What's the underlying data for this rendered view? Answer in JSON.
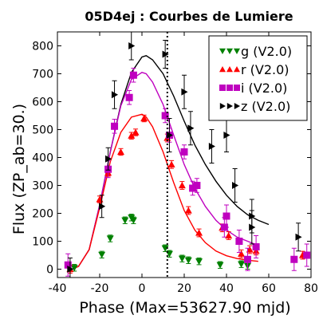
{
  "chart_data": {
    "type": "scatter",
    "title": "05D4ej : Courbes de Lumiere",
    "xlabel": "Phase (Max=53627.90 mjd)",
    "ylabel": "Flux (ZP_ab=30.)",
    "xlim": [
      -40,
      80
    ],
    "ylim": [
      -30,
      850
    ],
    "xticks": [
      -40,
      -20,
      0,
      20,
      40,
      60,
      80
    ],
    "yticks": [
      0,
      100,
      200,
      300,
      400,
      500,
      600,
      700,
      800
    ],
    "vline_x": 12,
    "legend_position": "top-right",
    "series": [
      {
        "name": "g (V2.0)",
        "color": "#008000",
        "marker": "triangle-down",
        "points": [
          {
            "x": -19,
            "y": 52,
            "err": 12
          },
          {
            "x": -15,
            "y": 110,
            "err": 12
          },
          {
            "x": -8,
            "y": 175,
            "err": 12
          },
          {
            "x": -5,
            "y": 185,
            "err": 12
          },
          {
            "x": -4,
            "y": 175,
            "err": 12
          },
          {
            "x": 11,
            "y": 75,
            "err": 12
          },
          {
            "x": 13,
            "y": 55,
            "err": 12
          },
          {
            "x": 19,
            "y": 38,
            "err": 12
          },
          {
            "x": 22,
            "y": 32,
            "err": 12
          },
          {
            "x": 27,
            "y": 28,
            "err": 12
          },
          {
            "x": 37,
            "y": 15,
            "err": 12
          },
          {
            "x": 47,
            "y": 18,
            "err": 12
          },
          {
            "x": 50,
            "y": 12,
            "err": 12
          },
          {
            "x": -32,
            "y": 5,
            "err": 12
          }
        ]
      },
      {
        "name": "r (V2.0)",
        "color": "#ff0000",
        "marker": "triangle-up",
        "points": [
          {
            "x": -20,
            "y": 250,
            "err": 12
          },
          {
            "x": -16,
            "y": 345,
            "err": 12
          },
          {
            "x": -10,
            "y": 420,
            "err": 12
          },
          {
            "x": -5,
            "y": 478,
            "err": 12
          },
          {
            "x": -3,
            "y": 490,
            "err": 12
          },
          {
            "x": 1,
            "y": 540,
            "err": 12
          },
          {
            "x": 12,
            "y": 470,
            "err": 14
          },
          {
            "x": 14,
            "y": 375,
            "err": 14
          },
          {
            "x": 19,
            "y": 300,
            "err": 14
          },
          {
            "x": 22,
            "y": 210,
            "err": 14
          },
          {
            "x": 27,
            "y": 130,
            "err": 14
          },
          {
            "x": 38,
            "y": 148,
            "err": 14
          },
          {
            "x": 41,
            "y": 120,
            "err": 14
          },
          {
            "x": 47,
            "y": 55,
            "err": 14
          },
          {
            "x": 51,
            "y": 70,
            "err": 14
          },
          {
            "x": 54,
            "y": 65,
            "err": 14
          },
          {
            "x": 76,
            "y": 50,
            "err": 14
          },
          {
            "x": -34,
            "y": 0,
            "err": 14
          }
        ]
      },
      {
        "name": "i (V2.0)",
        "color": "#bf00bf",
        "marker": "square",
        "points": [
          {
            "x": -35,
            "y": 15,
            "err": 40
          },
          {
            "x": -16,
            "y": 358,
            "err": 30
          },
          {
            "x": -13,
            "y": 512,
            "err": 25
          },
          {
            "x": -6,
            "y": 615,
            "err": 25
          },
          {
            "x": -4,
            "y": 695,
            "err": 25
          },
          {
            "x": 11,
            "y": 550,
            "err": 25
          },
          {
            "x": 13,
            "y": 480,
            "err": 25
          },
          {
            "x": 20,
            "y": 420,
            "err": 25
          },
          {
            "x": 24,
            "y": 290,
            "err": 25
          },
          {
            "x": 26,
            "y": 300,
            "err": 25
          },
          {
            "x": 39,
            "y": 150,
            "err": 35
          },
          {
            "x": 40,
            "y": 190,
            "err": 40
          },
          {
            "x": 46,
            "y": 100,
            "err": 40
          },
          {
            "x": 50,
            "y": 35,
            "err": 40
          },
          {
            "x": 54,
            "y": 80,
            "err": 40
          },
          {
            "x": 72,
            "y": 35,
            "err": 40
          },
          {
            "x": 78,
            "y": 50,
            "err": 40
          }
        ]
      },
      {
        "name": "z (V2.0)",
        "color": "#000000",
        "marker": "triangle-right",
        "points": [
          {
            "x": -34,
            "y": 0,
            "err": 40
          },
          {
            "x": -19,
            "y": 225,
            "err": 40
          },
          {
            "x": -16,
            "y": 395,
            "err": 40
          },
          {
            "x": -13,
            "y": 625,
            "err": 50
          },
          {
            "x": -5,
            "y": 800,
            "err": 50
          },
          {
            "x": 11,
            "y": 770,
            "err": 50
          },
          {
            "x": 13,
            "y": 480,
            "err": 60
          },
          {
            "x": 20,
            "y": 635,
            "err": 60
          },
          {
            "x": 23,
            "y": 505,
            "err": 60
          },
          {
            "x": 33,
            "y": 440,
            "err": 60
          },
          {
            "x": 40,
            "y": 480,
            "err": 60
          },
          {
            "x": 44,
            "y": 300,
            "err": 60
          },
          {
            "x": 52,
            "y": 190,
            "err": 60
          },
          {
            "x": 52,
            "y": 150,
            "err": 60
          },
          {
            "x": 74,
            "y": 115,
            "err": 50
          }
        ]
      }
    ],
    "fit_curves": [
      {
        "series": "z (V2.0)",
        "color": "#000000",
        "x": [
          -33,
          -30,
          -25,
          -20,
          -15,
          -10,
          -5,
          0,
          2,
          5,
          10,
          15,
          20,
          25,
          30,
          35,
          40,
          45,
          50,
          55,
          60
        ],
        "y": [
          0,
          10,
          70,
          230,
          420,
          590,
          705,
          760,
          765,
          750,
          700,
          620,
          530,
          445,
          375,
          315,
          265,
          225,
          195,
          175,
          160
        ]
      },
      {
        "series": "i (V2.0)",
        "color": "#bf00bf",
        "x": [
          -33,
          -30,
          -25,
          -20,
          -15,
          -10,
          -5,
          0,
          2,
          5,
          10,
          15,
          20,
          25,
          30,
          35,
          40,
          45,
          50,
          55
        ],
        "y": [
          0,
          10,
          70,
          230,
          420,
          585,
          680,
          705,
          700,
          670,
          590,
          480,
          375,
          290,
          225,
          175,
          140,
          115,
          100,
          85
        ]
      },
      {
        "series": "r (V2.0)",
        "color": "#ff0000",
        "x": [
          -33,
          -30,
          -25,
          -20,
          -15,
          -10,
          -5,
          0,
          2,
          5,
          10,
          15,
          20,
          25,
          30,
          35,
          40,
          45,
          50,
          55
        ],
        "y": [
          0,
          10,
          70,
          220,
          385,
          490,
          545,
          555,
          545,
          510,
          420,
          310,
          210,
          140,
          95,
          65,
          48,
          38,
          32,
          28
        ]
      }
    ]
  }
}
